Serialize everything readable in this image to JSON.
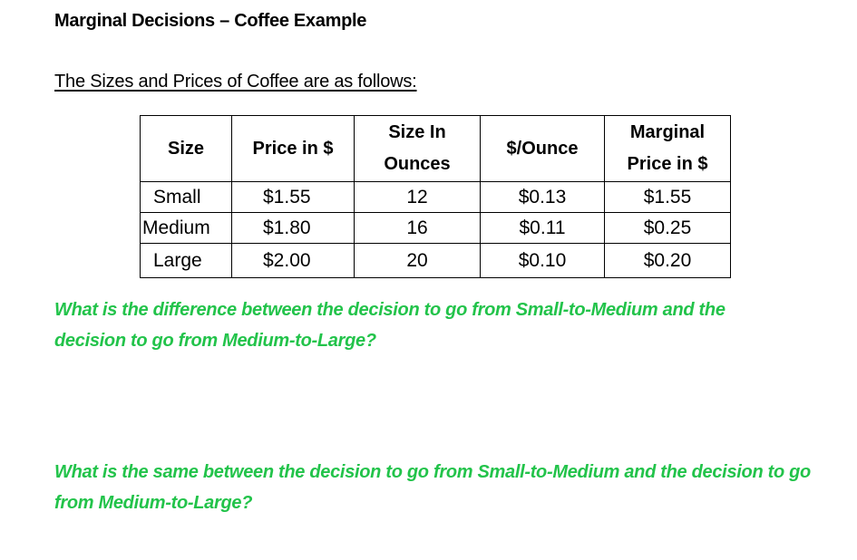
{
  "document": {
    "title": "Marginal Decisions – Coffee Example",
    "intro": "The Sizes and Prices of Coffee are as follows:"
  },
  "table": {
    "headers": [
      {
        "line1": "Size",
        "line2": ""
      },
      {
        "line1": "Price in $",
        "line2": ""
      },
      {
        "line1": "Size In",
        "line2": "Ounces"
      },
      {
        "line1": "$/Ounce",
        "line2": ""
      },
      {
        "line1": "Marginal",
        "line2": "Price in $"
      }
    ],
    "rows": [
      {
        "size": "Small",
        "price": "$1.55",
        "ounces": "12",
        "per_ounce": "$0.13",
        "marginal": "$1.55"
      },
      {
        "size": "Medium",
        "price": "$1.80",
        "ounces": "16",
        "per_ounce": "$0.11",
        "marginal": "$0.25"
      },
      {
        "size": "Large",
        "price": "$2.00",
        "ounces": "20",
        "per_ounce": "$0.10",
        "marginal": "$0.20"
      }
    ]
  },
  "questions": {
    "q1": "What is the difference between the decision to go from Small-to-Medium and the decision to go from Medium-to-Large?",
    "q2": "What is the same between the decision to go from Small-to-Medium and the decision to go from Medium-to-Large?"
  },
  "colors": {
    "question_text": "#22c34a",
    "text": "#000000",
    "background": "#ffffff"
  }
}
